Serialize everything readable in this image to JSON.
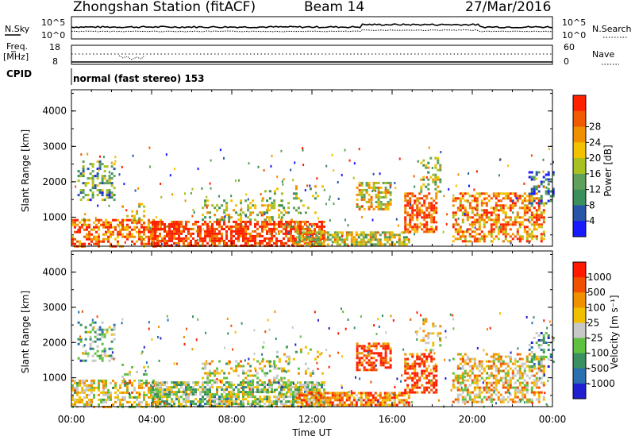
{
  "header": {
    "station": "Zhongshan Station (fitACF)",
    "beam": "Beam 14",
    "date": "27/Mar/2016"
  },
  "top_panels": {
    "nsky_label": "N.Sky",
    "nsearch_label": "N.Search",
    "noise_left_top": "10^5",
    "noise_left_bottom": "10^0",
    "noise_right_top": "10^5",
    "noise_right_bottom": "10^0",
    "freq_label_1": "Freq.",
    "freq_label_2": "[MHz]",
    "freq_top": "18",
    "freq_bottom": "8",
    "nave_label": "Nave",
    "nave_top": "60",
    "nave_bottom": "0",
    "cpid_label": "CPID",
    "cpid_value": "normal (fast stereo) 153"
  },
  "chart_data": [
    {
      "type": "heatmap",
      "title": "",
      "ylabel": "Slant Range [km]",
      "xlabel": "",
      "ylim": [
        180,
        4600
      ],
      "yticks": [
        "1000",
        "2000",
        "3000",
        "4000"
      ],
      "colorbar_label": "Power [dB]",
      "colorbar_ticks": [
        "4",
        "8",
        "12",
        "16",
        "20",
        "24",
        "28"
      ],
      "colors": [
        "#1a1aff",
        "#2855a8",
        "#3a8f5a",
        "#5fa05a",
        "#a8c020",
        "#f2c200",
        "#f09000",
        "#f05a00",
        "#ff2000"
      ]
    },
    {
      "type": "heatmap",
      "title": "",
      "ylabel": "Slant Range [km]",
      "xlabel": "Time UT",
      "ylim": [
        180,
        4600
      ],
      "yticks": [
        "1000",
        "2000",
        "3000",
        "4000"
      ],
      "xticks": [
        "00:00",
        "04:00",
        "08:00",
        "12:00",
        "16:00",
        "20:00",
        "00:00"
      ],
      "colorbar_label": "Velocity [m s⁻¹]",
      "colorbar_ticks": [
        "1000",
        "500",
        "100",
        "25",
        "-25",
        "-100",
        "-500",
        "-1000"
      ],
      "colors": [
        "#2020d0",
        "#2a6fb0",
        "#3a9060",
        "#60c040",
        "#c8c8c8",
        "#f0c000",
        "#f09000",
        "#f05000",
        "#ff1a00"
      ]
    }
  ]
}
